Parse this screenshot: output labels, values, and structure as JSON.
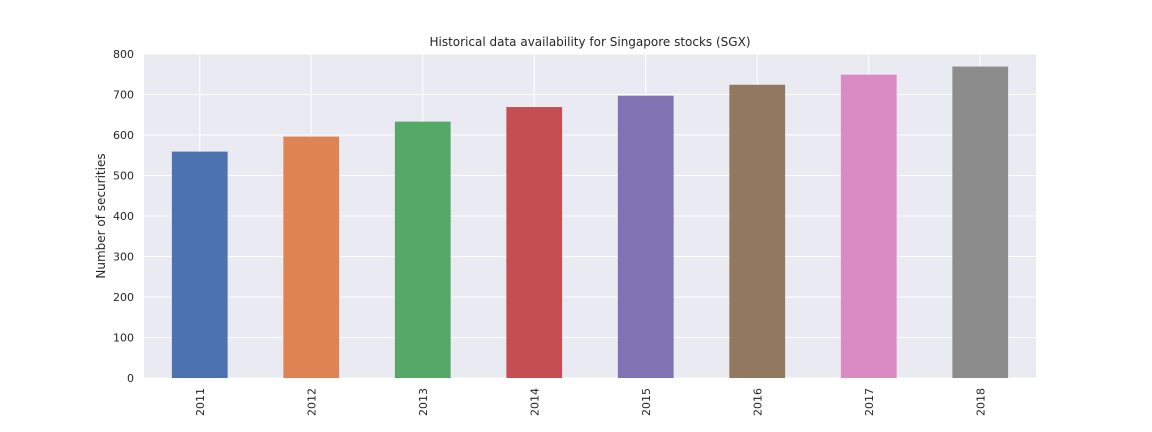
{
  "chart_data": {
    "type": "bar",
    "title": "Historical data availability for Singapore stocks (SGX)",
    "xlabel": "",
    "ylabel": "Number of securities",
    "categories": [
      "2011",
      "2012",
      "2013",
      "2014",
      "2015",
      "2016",
      "2017",
      "2018"
    ],
    "values": [
      559,
      596,
      633,
      669,
      697,
      724,
      749,
      769
    ],
    "colors": [
      "#4c72b0",
      "#dd8452",
      "#55a868",
      "#c44e52",
      "#8172b3",
      "#937860",
      "#da8bc3",
      "#8c8c8c"
    ],
    "ylim": [
      0,
      800
    ],
    "yticks": [
      0,
      100,
      200,
      300,
      400,
      500,
      600,
      700,
      800
    ],
    "grid": true,
    "background": "#eaeaf2"
  }
}
